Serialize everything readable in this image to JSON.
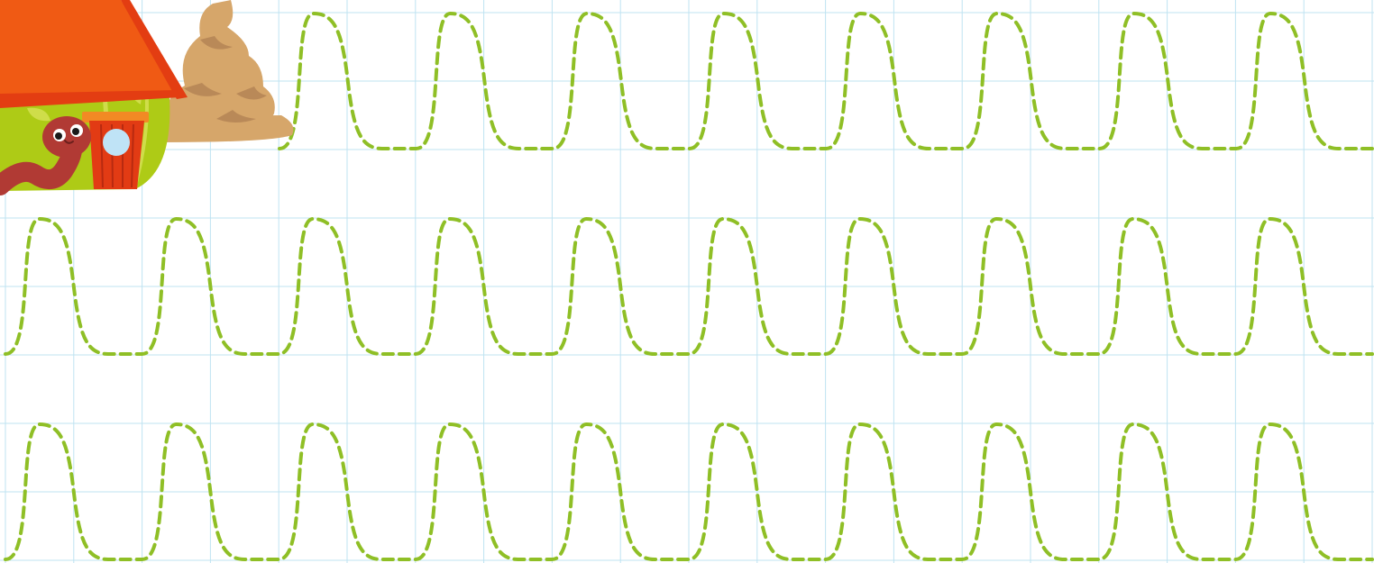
{
  "worksheet": {
    "type": "tracing-worksheet",
    "grid": {
      "visible": true,
      "color": "#bfe3f2"
    },
    "trace_paths": {
      "color": "#8fbf26",
      "style": "dashed",
      "shape": "wave",
      "rows": [
        {
          "name": "trace-row-1",
          "humps": 8
        },
        {
          "name": "trace-row-2",
          "humps": 10
        },
        {
          "name": "trace-row-3",
          "humps": 10
        }
      ]
    },
    "illustration": {
      "items": [
        "cabbage-house",
        "worm",
        "sand-pile"
      ],
      "colors": {
        "roof": "#f05a14",
        "roof_edge": "#e33d12",
        "cabbage": "#aecb16",
        "cabbage_light": "#cfdd4a",
        "door": "#e23b14",
        "door_frame": "#f28a24",
        "window": "#bfe3f6",
        "worm": "#b13a34",
        "sand": "#d6a66a",
        "sand_shadow": "#b98958"
      }
    }
  }
}
